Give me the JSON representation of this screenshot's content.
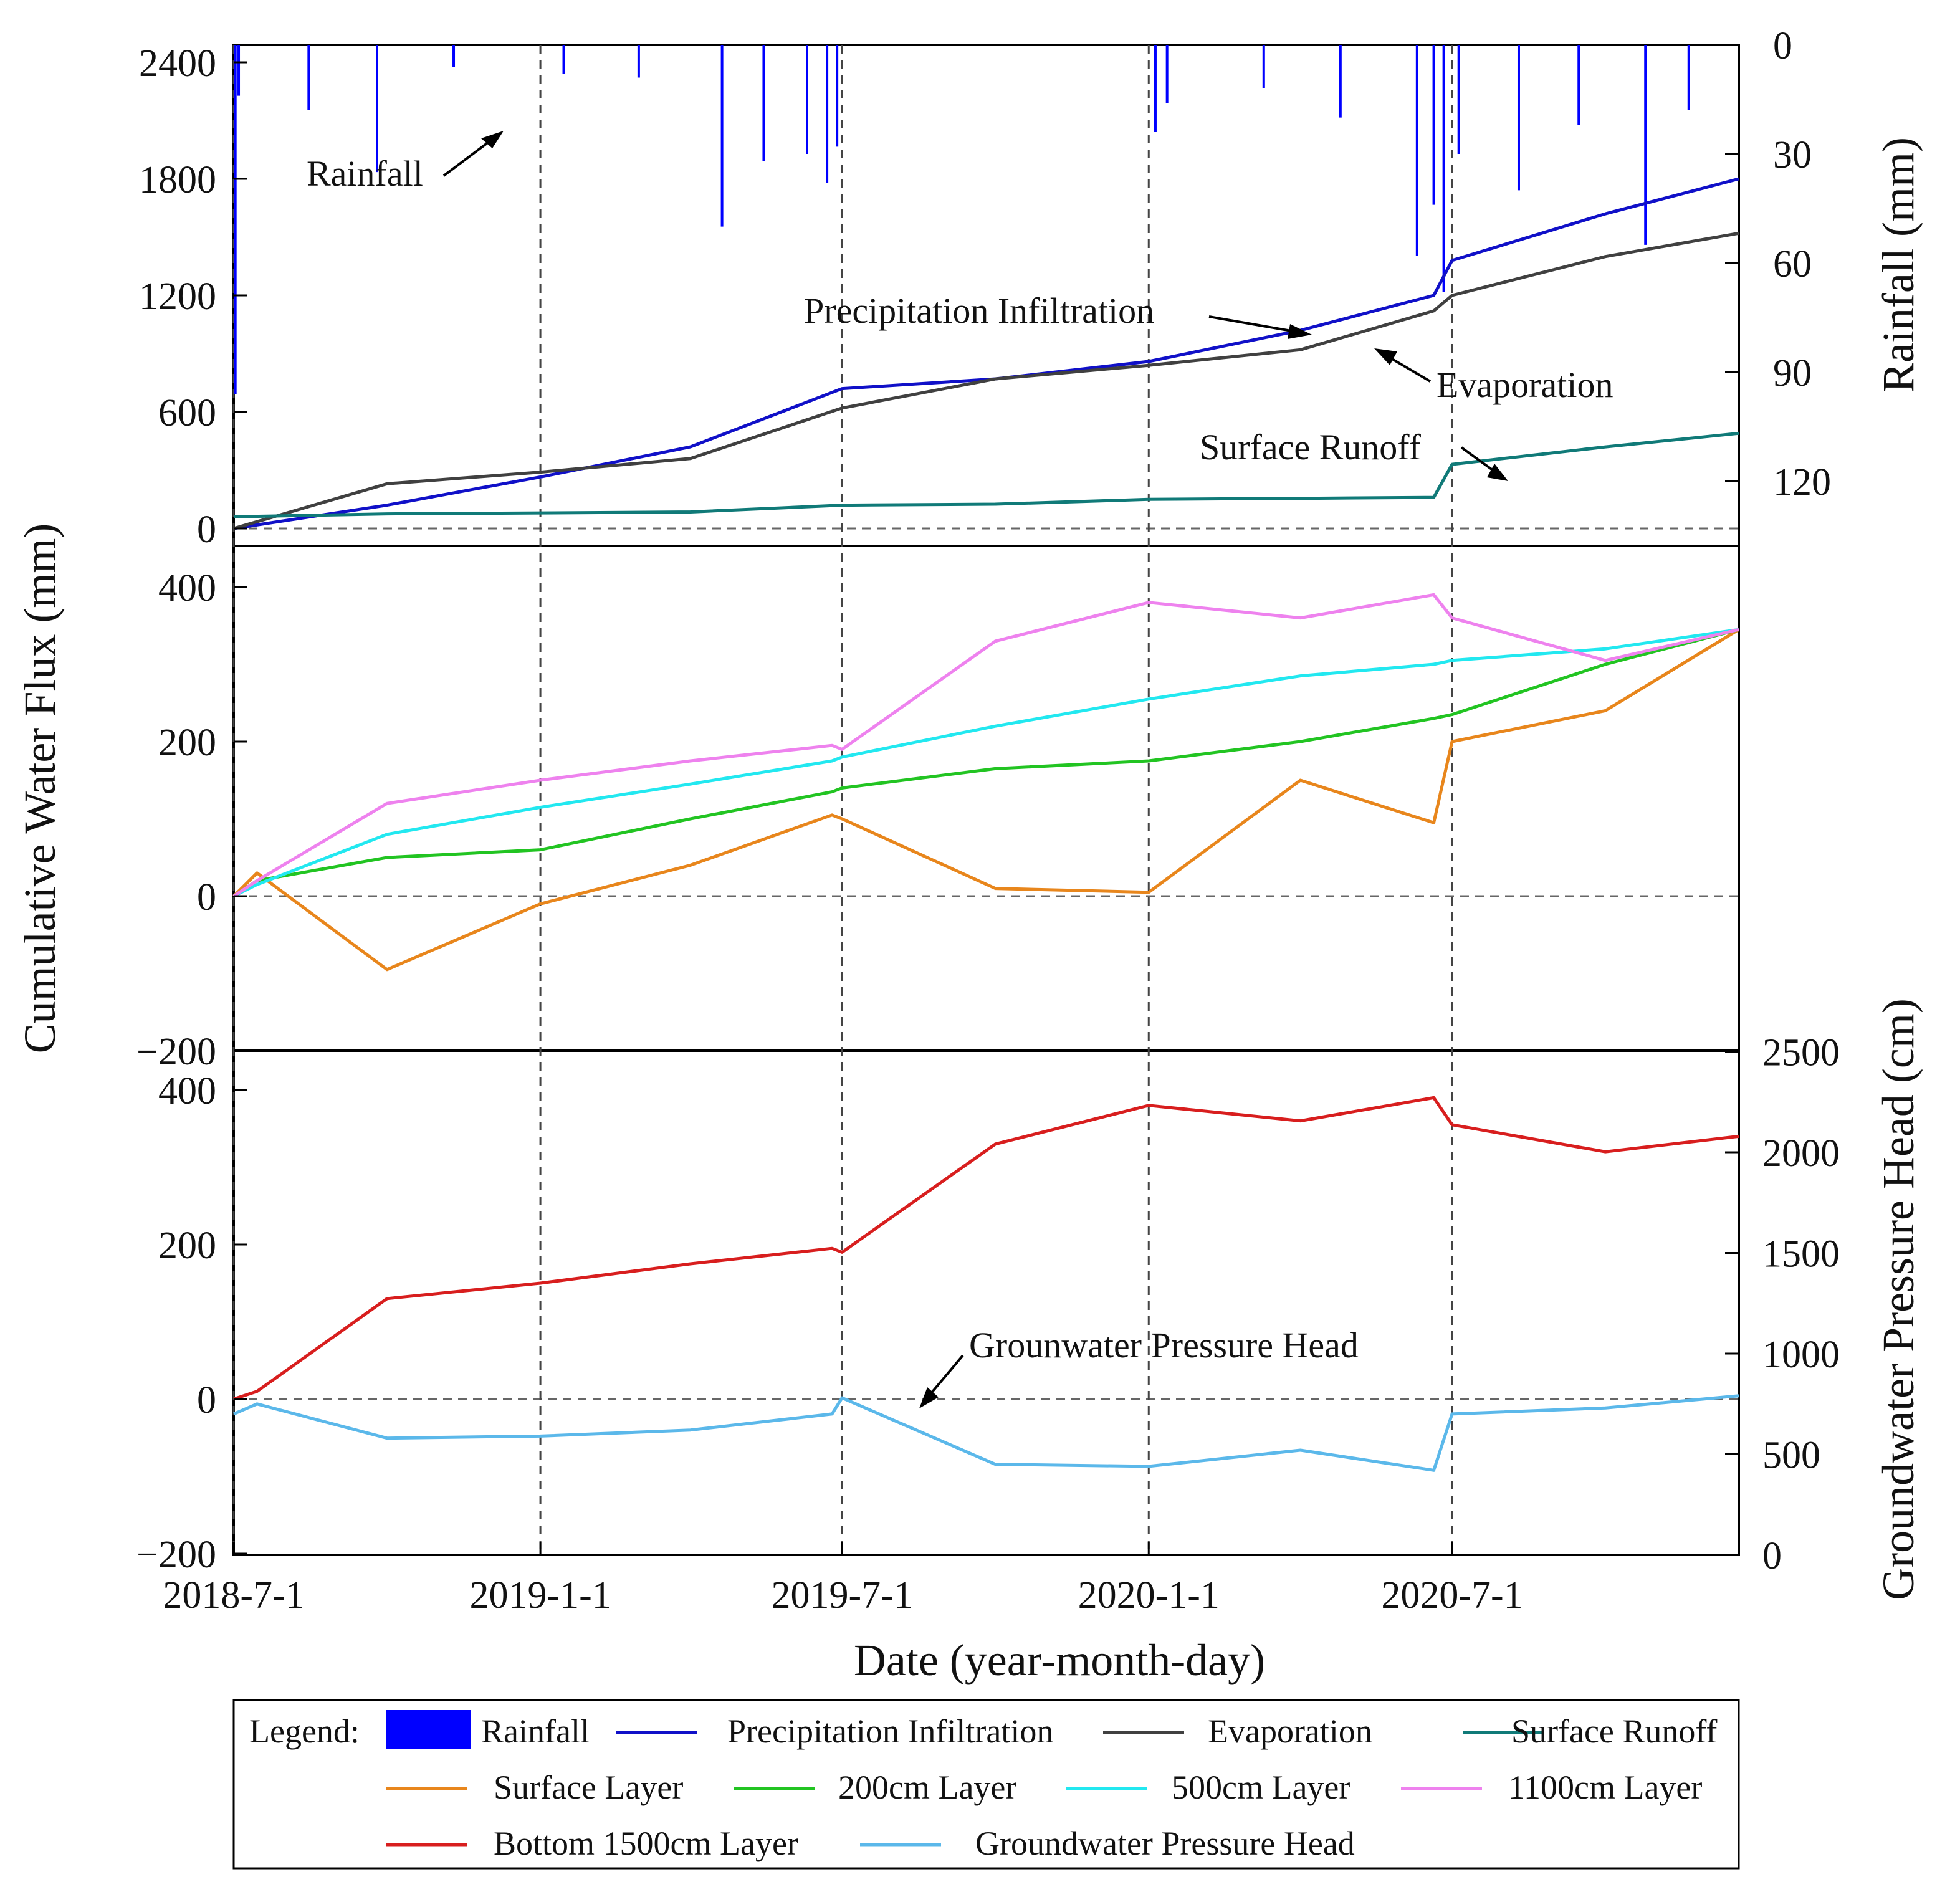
{
  "chart_data": [
    {
      "type": "line",
      "panel": "top",
      "title": "",
      "xlabel": "Date (year-month-day)",
      "ylabel": "Cumulative Water Flux (mm)",
      "ylim": [
        0,
        2500
      ],
      "yticks": [
        "0",
        "600",
        "1200",
        "1800",
        "2400"
      ],
      "y2label": "Rainfall (mm)",
      "y2lim": [
        0,
        135
      ],
      "y2ticks": [
        "0",
        "30",
        "60",
        "90",
        "120"
      ],
      "x": [
        "2018-07-01",
        "2018-10-01",
        "2019-01-01",
        "2019-04-01",
        "2019-07-01",
        "2019-10-01",
        "2020-01-01",
        "2020-04-01",
        "2020-06-20",
        "2020-07-01",
        "2020-10-01",
        "2020-12-20"
      ],
      "series": [
        {
          "name": "Precipitation Infiltration",
          "color": "#1010c8",
          "values": [
            0,
            120,
            265,
            420,
            720,
            770,
            860,
            1020,
            1200,
            1380,
            1620,
            1800
          ]
        },
        {
          "name": "Evaporation",
          "color": "#404040",
          "values": [
            0,
            230,
            290,
            360,
            620,
            770,
            840,
            920,
            1120,
            1200,
            1400,
            1520
          ]
        },
        {
          "name": "Surface Runoff",
          "color": "#107a78",
          "values": [
            60,
            75,
            80,
            85,
            120,
            125,
            150,
            155,
            160,
            330,
            420,
            490
          ]
        }
      ],
      "rainfall": {
        "name": "Rainfall",
        "color": "#0000ff",
        "events": [
          {
            "date": "2018-07-02",
            "mm": 96
          },
          {
            "date": "2018-07-04",
            "mm": 14
          },
          {
            "date": "2018-08-15",
            "mm": 18
          },
          {
            "date": "2018-09-25",
            "mm": 35
          },
          {
            "date": "2018-11-10",
            "mm": 6
          },
          {
            "date": "2019-01-15",
            "mm": 8
          },
          {
            "date": "2019-03-01",
            "mm": 9
          },
          {
            "date": "2019-04-20",
            "mm": 50
          },
          {
            "date": "2019-05-15",
            "mm": 32
          },
          {
            "date": "2019-06-10",
            "mm": 30
          },
          {
            "date": "2019-06-22",
            "mm": 38
          },
          {
            "date": "2019-06-28",
            "mm": 28
          },
          {
            "date": "2020-01-05",
            "mm": 24
          },
          {
            "date": "2020-01-12",
            "mm": 16
          },
          {
            "date": "2020-03-10",
            "mm": 12
          },
          {
            "date": "2020-04-25",
            "mm": 20
          },
          {
            "date": "2020-06-10",
            "mm": 58
          },
          {
            "date": "2020-06-20",
            "mm": 44
          },
          {
            "date": "2020-06-26",
            "mm": 68
          },
          {
            "date": "2020-07-05",
            "mm": 30
          },
          {
            "date": "2020-08-10",
            "mm": 40
          },
          {
            "date": "2020-09-15",
            "mm": 22
          },
          {
            "date": "2020-10-25",
            "mm": 55
          },
          {
            "date": "2020-11-20",
            "mm": 18
          }
        ]
      },
      "annotations": [
        "Rainfall",
        "Precipitation Infiltration",
        "Evaporation",
        "Surface Runoff"
      ]
    },
    {
      "type": "line",
      "panel": "middle",
      "ylim": [
        -200,
        450
      ],
      "yticks": [
        "−200",
        "0",
        "200",
        "400"
      ],
      "x": [
        "2018-07-01",
        "2018-07-15",
        "2018-10-01",
        "2019-01-01",
        "2019-04-01",
        "2019-06-25",
        "2019-07-01",
        "2019-10-01",
        "2020-01-01",
        "2020-04-01",
        "2020-06-20",
        "2020-07-01",
        "2020-10-01",
        "2020-12-20"
      ],
      "series": [
        {
          "name": "Surface Layer",
          "color": "#e8861c",
          "values": [
            0,
            30,
            -95,
            -10,
            40,
            105,
            100,
            10,
            5,
            150,
            95,
            200,
            240,
            345
          ]
        },
        {
          "name": "200cm Layer",
          "color": "#22c422",
          "values": [
            0,
            20,
            50,
            60,
            100,
            135,
            140,
            165,
            175,
            200,
            230,
            235,
            300,
            345
          ]
        },
        {
          "name": "500cm Layer",
          "color": "#22e8f0",
          "values": [
            0,
            15,
            80,
            115,
            145,
            175,
            180,
            220,
            255,
            285,
            300,
            305,
            320,
            345
          ]
        },
        {
          "name": "1100cm Layer",
          "color": "#ee82ee",
          "values": [
            0,
            20,
            120,
            150,
            175,
            195,
            190,
            330,
            380,
            360,
            390,
            360,
            305,
            345
          ]
        }
      ]
    },
    {
      "type": "line",
      "panel": "bottom",
      "ylim": [
        -200,
        450
      ],
      "yticks": [
        "−200",
        "0",
        "200",
        "400"
      ],
      "y2label": "Groundwater Pressure Head (cm)",
      "y2lim": [
        0,
        2500
      ],
      "y2ticks": [
        "0",
        "500",
        "1000",
        "1500",
        "2000",
        "2500"
      ],
      "x": [
        "2018-07-01",
        "2018-07-15",
        "2018-10-01",
        "2019-01-01",
        "2019-04-01",
        "2019-06-25",
        "2019-07-01",
        "2019-10-01",
        "2020-01-01",
        "2020-04-01",
        "2020-06-20",
        "2020-07-01",
        "2020-10-01",
        "2020-12-20"
      ],
      "series": [
        {
          "name": "Bottom 1500cm Layer",
          "color": "#d81e1e",
          "values": [
            0,
            10,
            130,
            150,
            175,
            195,
            190,
            330,
            380,
            360,
            390,
            355,
            320,
            340
          ]
        },
        {
          "name": "Groundwater Pressure Head",
          "color": "#5bb8ea",
          "values": [
            700,
            750,
            580,
            590,
            620,
            700,
            780,
            450,
            440,
            520,
            420,
            700,
            730,
            790
          ]
        }
      ],
      "annotations": [
        "Grounwater Pressure Head"
      ]
    }
  ],
  "x_axis": {
    "start": "2018-07-01",
    "end": "2020-12-20",
    "ticks": [
      {
        "date": "2018-07-01",
        "label": "2018-7-1"
      },
      {
        "date": "2019-01-01",
        "label": "2019-1-1"
      },
      {
        "date": "2019-07-01",
        "label": "2019-7-1"
      },
      {
        "date": "2020-01-01",
        "label": "2020-1-1"
      },
      {
        "date": "2020-07-01",
        "label": "2020-7-1"
      }
    ]
  },
  "labels": {
    "ylabel": "Cumulative Water Flux (mm)",
    "xlabel": "Date (year-month-day)",
    "y2_top": "Rainfall (mm)",
    "y2_bottom": "Groundwater Pressure Head (cm)",
    "annot_rainfall": "Rainfall",
    "annot_infiltration": "Precipitation Infiltration",
    "annot_evaporation": "Evaporation",
    "annot_runoff": "Surface Runoff",
    "annot_groundwater": "Grounwater Pressure Head"
  },
  "legend": {
    "title": "Legend:",
    "items": [
      {
        "label": "Rainfall",
        "color": "#0000ff",
        "kind": "box"
      },
      {
        "label": "Precipitation Infiltration",
        "color": "#1010c8",
        "kind": "line"
      },
      {
        "label": "Evaporation",
        "color": "#404040",
        "kind": "line"
      },
      {
        "label": "Surface Runoff",
        "color": "#107a78",
        "kind": "line"
      },
      {
        "label": "Surface Layer",
        "color": "#e8861c",
        "kind": "line"
      },
      {
        "label": "200cm Layer",
        "color": "#22c422",
        "kind": "line"
      },
      {
        "label": "500cm Layer",
        "color": "#22e8f0",
        "kind": "line"
      },
      {
        "label": "1100cm Layer",
        "color": "#ee82ee",
        "kind": "line"
      },
      {
        "label": "Bottom 1500cm Layer",
        "color": "#d81e1e",
        "kind": "line"
      },
      {
        "label": "Groundwater Pressure Head",
        "color": "#5bb8ea",
        "kind": "line"
      }
    ]
  }
}
